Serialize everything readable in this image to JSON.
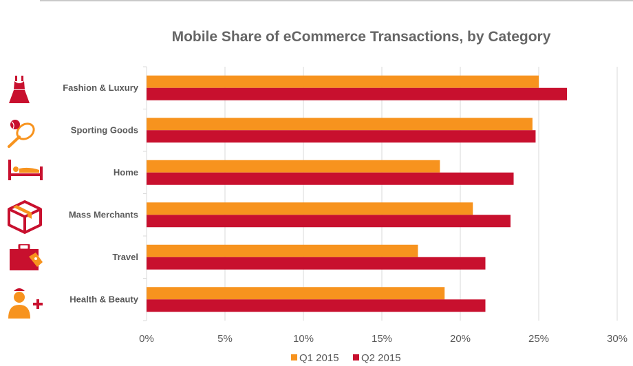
{
  "chart_data": {
    "type": "bar",
    "orientation": "horizontal",
    "title": "Mobile Share of eCommerce Transactions, by Category",
    "categories": [
      "Fashion & Luxury",
      "Sporting Goods",
      "Home",
      "Mass Merchants",
      "Travel",
      "Health & Beauty"
    ],
    "series": [
      {
        "name": "Q1 2015",
        "color": "#F7931E",
        "values": [
          25.0,
          24.6,
          18.7,
          20.8,
          17.3,
          19.0
        ]
      },
      {
        "name": "Q2 2015",
        "color": "#C8102E",
        "values": [
          26.8,
          24.8,
          23.4,
          23.2,
          21.6,
          21.6
        ]
      }
    ],
    "xlim": [
      0,
      30
    ],
    "xticks": [
      0,
      5,
      10,
      15,
      20,
      25,
      30
    ],
    "tick_format": "{v}%",
    "grid": true,
    "legend_position": "bottom-center"
  },
  "icons": [
    {
      "category": "Fashion & Luxury",
      "name": "dress-icon",
      "color": "#C8102E"
    },
    {
      "category": "Sporting Goods",
      "name": "tennis-racket-icon",
      "color": "#F7931E"
    },
    {
      "category": "Home",
      "name": "bed-icon",
      "color": "#C8102E"
    },
    {
      "category": "Mass Merchants",
      "name": "package-icon",
      "color": "#C8102E"
    },
    {
      "category": "Travel",
      "name": "suitcase-icon",
      "color": "#C8102E"
    },
    {
      "category": "Health & Beauty",
      "name": "nurse-plus-icon",
      "color": "#F7931E"
    }
  ]
}
